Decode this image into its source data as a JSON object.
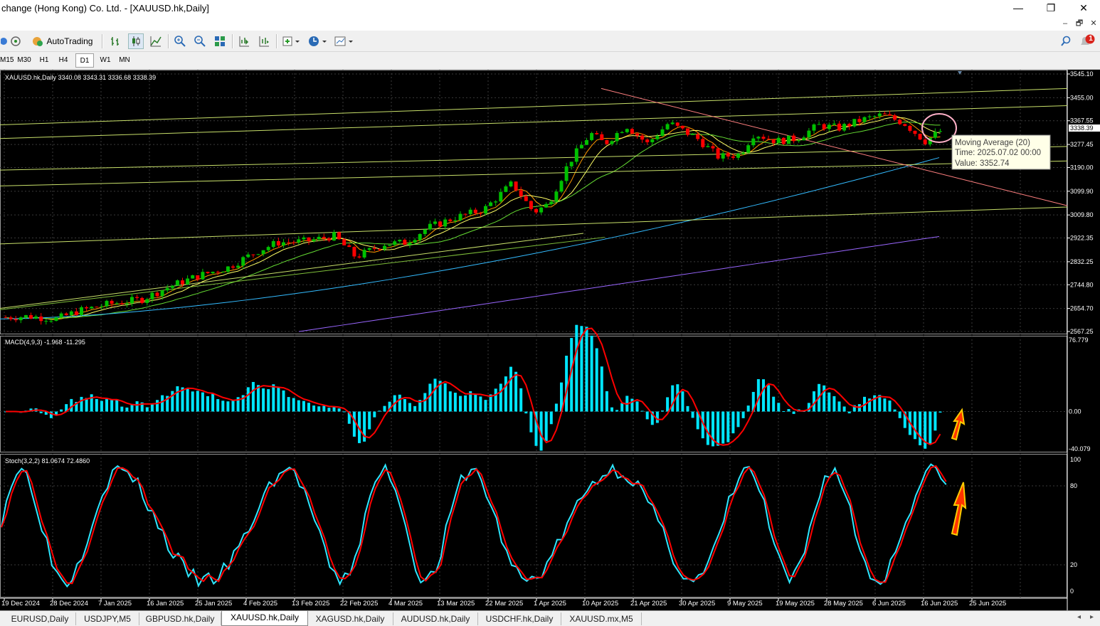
{
  "window": {
    "title": "change (Hong Kong) Co. Ltd. - [XAUUSD.hk,Daily]",
    "minimize": "—",
    "maximize": "❐",
    "close": "✕"
  },
  "mdi": {
    "minimize": "–",
    "restore": "🗗",
    "close": "✕"
  },
  "toolbar": {
    "autotrading_label": "AutoTrading",
    "notification_count": "1"
  },
  "timeframes": [
    "M15",
    "M30",
    "H1",
    "H4",
    "D1",
    "W1",
    "MN"
  ],
  "timeframe_active": "D1",
  "chart": {
    "info": "XAUUSD.hk,Daily  3340.08 3343.31 3336.68 3338.39",
    "current_price": "3338.39",
    "price_axis_labels": [
      "3545.10",
      "3455.00",
      "3367.55",
      "3277.45",
      "3190.00",
      "3099.90",
      "3009.80",
      "2922.35",
      "2832.25",
      "2744.80",
      "2654.70",
      "2567.25"
    ],
    "date_labels": [
      "19 Dec 2024",
      "28 Dec 2024",
      "7 Jan 2025",
      "16 Jan 2025",
      "25 Jan 2025",
      "4 Feb 2025",
      "13 Feb 2025",
      "22 Feb 2025",
      "4 Mar 2025",
      "13 Mar 2025",
      "22 Mar 2025",
      "1 Apr 2025",
      "10 Apr 2025",
      "21 Apr 2025",
      "30 Apr 2025",
      "9 May 2025",
      "19 May 2025",
      "28 May 2025",
      "6 Jun 2025",
      "16 Jun 2025",
      "25 Jun 2025"
    ],
    "tooltip": {
      "line1": "Moving Average (20)",
      "line2": "Time: 2025.07.02 00:00",
      "line3": "Value: 3352.74"
    },
    "macd": {
      "label": "MACD(4,9,3) -1.968 -11.295",
      "axis": [
        "76.779",
        "0.00",
        "-40.079"
      ]
    },
    "stoch": {
      "label": "Stoch(3,2,2) 81.0674 72.4860",
      "axis": [
        "100",
        "80",
        "20",
        "0"
      ]
    },
    "colors": {
      "bull": "#00c000",
      "bear": "#ff0000",
      "grid": "#3a3a3a",
      "macd_hist": "#00e5ff",
      "macd_signal": "#ff0000",
      "stoch_main": "#2ee6ff",
      "stoch_signal": "#ff0000",
      "ma_fast": "#ff9900",
      "ma_20": "#ffff66",
      "ma_50": "#66dd33",
      "ma_100": "#33bbff",
      "ma_200": "#9966ff"
    }
  },
  "tabs": [
    "EURUSD,Daily",
    "USDJPY,M5",
    "GBPUSD.hk,Daily",
    "XAUUSD.hk,Daily",
    "XAGUSD.hk,Daily",
    "AUDUSD.hk,Daily",
    "USDCHF.hk,Daily",
    "XAUUSD.mx,M5"
  ],
  "active_tab": "XAUUSD.hk,Daily"
}
